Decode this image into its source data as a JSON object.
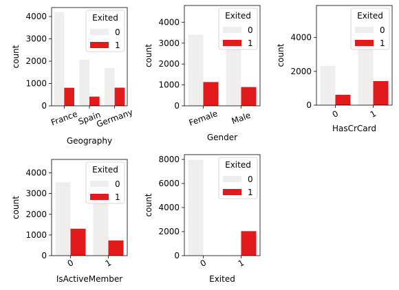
{
  "chart_data": [
    {
      "type": "bar",
      "xlabel": "Geography",
      "ylabel": "count",
      "categories": [
        "France",
        "Spain",
        "Germany"
      ],
      "series": [
        {
          "name": "0",
          "values": [
            4204,
            2064,
            1695
          ]
        },
        {
          "name": "1",
          "values": [
            810,
            413,
            814
          ]
        }
      ],
      "ylim": [
        0,
        4400
      ],
      "yticks": [
        0,
        1000,
        2000,
        3000,
        4000
      ],
      "tick_rotation": 20,
      "legend": {
        "title": "Exited",
        "entries": [
          "0",
          "1"
        ],
        "placement": "top-right"
      }
    },
    {
      "type": "bar",
      "xlabel": "Gender",
      "ylabel": "count",
      "categories": [
        "Female",
        "Male"
      ],
      "series": [
        {
          "name": "0",
          "values": [
            3404,
            4559
          ]
        },
        {
          "name": "1",
          "values": [
            1139,
            898
          ]
        }
      ],
      "ylim": [
        0,
        4800
      ],
      "yticks": [
        0,
        1000,
        2000,
        3000,
        4000
      ],
      "tick_rotation": 20,
      "legend": {
        "title": "Exited",
        "entries": [
          "0",
          "1"
        ],
        "placement": "top-right"
      }
    },
    {
      "type": "bar",
      "xlabel": "HasCrCard",
      "ylabel": "count",
      "categories": [
        "0",
        "1"
      ],
      "series": [
        {
          "name": "0",
          "values": [
            2332,
            5631
          ]
        },
        {
          "name": "1",
          "values": [
            613,
            1424
          ]
        }
      ],
      "ylim": [
        0,
        5900
      ],
      "yticks": [
        0,
        2000,
        4000
      ],
      "tick_rotation": 30,
      "legend": {
        "title": "Exited",
        "entries": [
          "0",
          "1"
        ],
        "placement": "top-right"
      }
    },
    {
      "type": "bar",
      "xlabel": "IsActiveMember",
      "ylabel": "count",
      "categories": [
        "0",
        "1"
      ],
      "series": [
        {
          "name": "0",
          "values": [
            3547,
            4416
          ]
        },
        {
          "name": "1",
          "values": [
            1302,
            735
          ]
        }
      ],
      "ylim": [
        0,
        4650
      ],
      "yticks": [
        0,
        1000,
        2000,
        3000,
        4000
      ],
      "tick_rotation": 30,
      "legend": {
        "title": "Exited",
        "entries": [
          "0",
          "1"
        ],
        "placement": "top-right"
      }
    },
    {
      "type": "bar",
      "xlabel": "Exited",
      "ylabel": "count",
      "categories": [
        "0",
        "1"
      ],
      "series": [
        {
          "name": "0",
          "values": [
            7963,
            0
          ]
        },
        {
          "name": "1",
          "values": [
            0,
            2037
          ]
        }
      ],
      "ylim": [
        0,
        8400
      ],
      "yticks": [
        0,
        2000,
        4000,
        6000,
        8000
      ],
      "tick_rotation": 30,
      "legend": {
        "title": "Exited",
        "entries": [
          "0",
          "1"
        ],
        "placement": "top-right"
      }
    }
  ],
  "colors": {
    "series0": "#f0eded",
    "series1": "#e31a1c",
    "axis": "#000000",
    "legend_border": "#cccccc"
  }
}
